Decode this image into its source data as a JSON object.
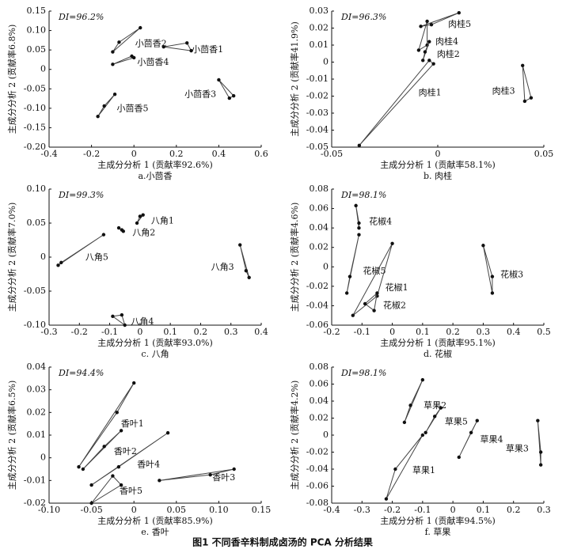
{
  "caption": "图1  不同香辛料制成卤汤的 PCA 分析结果",
  "chart_data": [
    {
      "type": "scatter",
      "caption": "a.小茴香",
      "annotation": "DI=96.2%",
      "xlabel": "主成分分析 1 (贡献率92.6%)",
      "ylabel": "主成分分析 2 (贡献率6.8%)",
      "xlim": [
        -0.4,
        0.6
      ],
      "ylim": [
        -0.2,
        0.15
      ],
      "xticks": [
        -0.4,
        -0.2,
        0,
        0.2,
        0.4,
        0.6
      ],
      "yticks": [
        0.15,
        {
          "value": 0.1,
          "label": "0.10"
        },
        0.05,
        0,
        -0.05,
        {
          "value": -0.1,
          "label": "-0.10"
        },
        -0.15,
        {
          "value": -0.2,
          "label": "-0.20"
        }
      ],
      "series": [
        {
          "name": "小茴香2",
          "x": [
            0.03,
            -0.1,
            -0.07
          ],
          "y": [
            0.107,
            0.045,
            0.07
          ]
        },
        {
          "name": "小茴香1",
          "x": [
            0.14,
            0.25,
            0.27
          ],
          "y": [
            0.058,
            0.068,
            0.048
          ]
        },
        {
          "name": "小茴香4",
          "x": [
            -0.1,
            -0.01,
            0.0
          ],
          "y": [
            0.013,
            0.034,
            0.03
          ]
        },
        {
          "name": "小茴香3",
          "x": [
            0.4,
            0.45,
            0.47
          ],
          "y": [
            -0.027,
            -0.074,
            -0.068
          ]
        },
        {
          "name": "小茴香5",
          "x": [
            -0.17,
            -0.09,
            -0.14
          ],
          "y": [
            -0.121,
            -0.064,
            -0.094
          ]
        }
      ]
    },
    {
      "type": "scatter",
      "caption": "b. 肉桂",
      "annotation": "DI=96.3%",
      "xlabel": "主成分分析 1 (贡献率58.1%)",
      "ylabel": "主成分分析 2 (贡献率41.9%)",
      "xlim": [
        -0.05,
        0.05
      ],
      "ylim": [
        -0.05,
        0.03
      ],
      "xticks": [
        -0.05,
        0,
        0.05
      ],
      "yticks": [
        0.03,
        0.02,
        0.01,
        0,
        -0.01,
        -0.02,
        -0.03,
        -0.04,
        -0.05
      ],
      "series": [
        {
          "name": "肉桂5",
          "x": [
            0.01,
            -0.003,
            -0.008
          ],
          "y": [
            0.029,
            0.022,
            0.021
          ]
        },
        {
          "name": "肉桂4",
          "x": [
            -0.005,
            -0.009,
            -0.005
          ],
          "y": [
            0.024,
            0.007,
            0.01
          ]
        },
        {
          "name": "肉桂2",
          "x": [
            -0.004,
            -0.007,
            -0.006
          ],
          "y": [
            0.012,
            0.001,
            0.006
          ]
        },
        {
          "name": "肉桂3",
          "x": [
            0.04,
            0.041,
            0.044
          ],
          "y": [
            -0.002,
            -0.023,
            -0.021
          ]
        },
        {
          "name": "肉桂1",
          "x": [
            -0.037,
            -0.002,
            -0.004
          ],
          "y": [
            -0.049,
            -0.001,
            0.001
          ]
        }
      ]
    },
    {
      "type": "scatter",
      "caption": "c. 八角",
      "annotation": "DI=99.3%",
      "xlabel": "主成分分析 1 (贡献率93.0%)",
      "ylabel": "主成分分析 2 (贡献率7.0%)",
      "xlim": [
        -0.3,
        0.4
      ],
      "ylim": [
        -0.1,
        0.1
      ],
      "xticks": [
        -0.3,
        -0.2,
        -0.1,
        0,
        0.1,
        0.2,
        0.3,
        0.4
      ],
      "yticks": [
        {
          "value": 0.1,
          "label": "0.10"
        },
        0.05,
        0,
        -0.05,
        {
          "value": -0.1,
          "label": "-0.10"
        }
      ],
      "series": [
        {
          "name": "八角1",
          "x": [
            0.0,
            -0.01,
            0.01
          ],
          "y": [
            0.06,
            0.05,
            0.062
          ]
        },
        {
          "name": "八角2",
          "x": [
            -0.07,
            -0.06,
            -0.055
          ],
          "y": [
            0.043,
            0.04,
            0.038
          ]
        },
        {
          "name": "八角5",
          "x": [
            -0.27,
            -0.26,
            -0.12
          ],
          "y": [
            -0.012,
            -0.008,
            0.033
          ]
        },
        {
          "name": "八角3",
          "x": [
            0.33,
            0.35,
            0.36
          ],
          "y": [
            0.018,
            -0.02,
            -0.03
          ]
        },
        {
          "name": "八角4",
          "x": [
            -0.09,
            -0.06,
            -0.05
          ],
          "y": [
            -0.087,
            -0.085,
            -0.1
          ]
        }
      ]
    },
    {
      "type": "scatter",
      "caption": "d. 花椒",
      "annotation": "DI=98.1%",
      "xlabel": "主成分分析 1 (贡献率95.1%)",
      "ylabel": "主成分分析 2 (贡献率4.6%)",
      "xlim": [
        -0.2,
        0.5
      ],
      "ylim": [
        -0.06,
        0.08
      ],
      "xticks": [
        -0.2,
        -0.1,
        0,
        0.1,
        0.2,
        0.3,
        0.4,
        0.5
      ],
      "yticks": [
        0.08,
        0.06,
        0.04,
        0.02,
        0,
        -0.02,
        -0.04,
        -0.06
      ],
      "series": [
        {
          "name": "花椒4",
          "x": [
            -0.12,
            -0.11,
            -0.11
          ],
          "y": [
            0.063,
            0.045,
            0.04
          ]
        },
        {
          "name": "花椒5",
          "x": [
            -0.11,
            -0.14,
            -0.15
          ],
          "y": [
            0.033,
            -0.01,
            -0.027
          ]
        },
        {
          "name": "花椒1",
          "x": [
            0.0,
            -0.05,
            -0.13
          ],
          "y": [
            0.024,
            -0.03,
            -0.05
          ]
        },
        {
          "name": "花椒3",
          "x": [
            0.3,
            0.33,
            0.33
          ],
          "y": [
            0.022,
            -0.01,
            -0.027
          ]
        },
        {
          "name": "花椒2",
          "x": [
            -0.05,
            -0.09,
            -0.06
          ],
          "y": [
            -0.027,
            -0.038,
            -0.045
          ]
        }
      ]
    },
    {
      "type": "scatter",
      "caption": "e. 香叶",
      "annotation": "DI=94.4%",
      "xlabel": "主成分分析 1 (贡献率85.9%)",
      "ylabel": "主成分分析 2 (贡献率6.5%)",
      "xlim": [
        -0.1,
        0.15
      ],
      "ylim": [
        -0.02,
        0.04
      ],
      "xticks": [
        {
          "value": -0.1,
          "label": "-0.10"
        },
        -0.05,
        0,
        0.05,
        {
          "value": 0.1,
          "label": "0.10"
        },
        0.15
      ],
      "yticks": [
        0.04,
        0.03,
        0.02,
        0.01,
        0,
        -0.01,
        -0.02
      ],
      "series": [
        {
          "name": "香叶1",
          "x": [
            0.0,
            -0.02,
            -0.065
          ],
          "y": [
            0.033,
            0.02,
            -0.004
          ]
        },
        {
          "name": "香叶2",
          "x": [
            -0.015,
            -0.035,
            -0.06
          ],
          "y": [
            0.012,
            0.005,
            -0.005
          ]
        },
        {
          "name": "香叶4",
          "x": [
            0.04,
            -0.018,
            -0.05
          ],
          "y": [
            0.011,
            -0.004,
            -0.012
          ]
        },
        {
          "name": "香叶3",
          "x": [
            0.03,
            0.09,
            0.118
          ],
          "y": [
            -0.01,
            -0.0075,
            -0.005
          ]
        },
        {
          "name": "香叶5",
          "x": [
            -0.025,
            -0.015,
            -0.05
          ],
          "y": [
            -0.008,
            -0.012,
            -0.02
          ]
        }
      ]
    },
    {
      "type": "scatter",
      "caption": "f. 草果",
      "annotation": "DI=98.1%",
      "xlabel": "主成分分析 1 (贡献率94.5%)",
      "ylabel": "主成分分析 2 (贡献率4.2%)",
      "xlim": [
        -0.4,
        0.3
      ],
      "ylim": [
        -0.08,
        0.08
      ],
      "xticks": [
        -0.4,
        -0.3,
        -0.2,
        -0.1,
        0,
        0.1,
        0.2,
        0.3
      ],
      "yticks": [
        0.08,
        0.06,
        0.04,
        0.02,
        0,
        -0.02,
        -0.04,
        -0.06,
        -0.08
      ],
      "series": [
        {
          "name": "草果2",
          "x": [
            -0.1,
            -0.14,
            -0.16
          ],
          "y": [
            0.065,
            0.035,
            0.015
          ]
        },
        {
          "name": "草果5",
          "x": [
            -0.04,
            -0.06,
            -0.09
          ],
          "y": [
            0.032,
            0.022,
            0.003
          ]
        },
        {
          "name": "草果4",
          "x": [
            0.08,
            0.06,
            0.02
          ],
          "y": [
            0.017,
            0.003,
            -0.026
          ]
        },
        {
          "name": "草果3",
          "x": [
            0.28,
            0.29,
            0.29
          ],
          "y": [
            0.017,
            -0.02,
            -0.035
          ]
        },
        {
          "name": "草果1",
          "x": [
            -0.1,
            -0.19,
            -0.22
          ],
          "y": [
            0.0,
            -0.04,
            -0.075
          ]
        }
      ]
    }
  ]
}
